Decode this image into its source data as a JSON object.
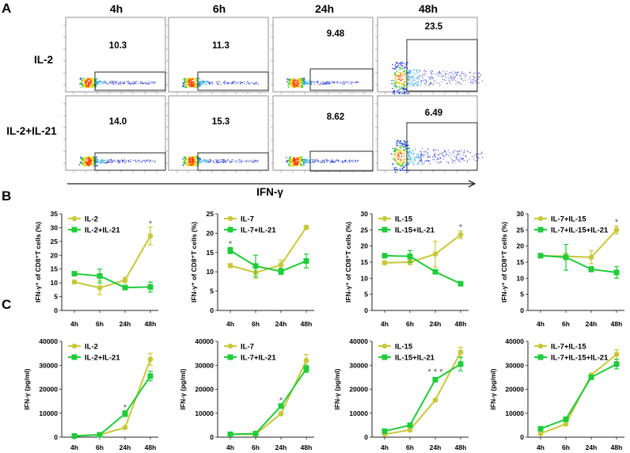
{
  "figure": {
    "panel_labels": [
      "A",
      "B",
      "C"
    ],
    "flow": {
      "time_headers": [
        "4h",
        "6h",
        "24h",
        "48h"
      ],
      "row_labels": [
        "IL-2",
        "IL-2+IL-21"
      ],
      "percentages": [
        [
          "10.3",
          "11.3",
          "9.48",
          "23.5"
        ],
        [
          "14.0",
          "15.3",
          "8.62",
          "6.49"
        ]
      ],
      "x_axis_label": "IFN-γ"
    }
  },
  "colors": {
    "yellow": "#c8c83a",
    "green": "#1fcc3a",
    "axis": "#222222"
  },
  "chart_data": [
    {
      "type": "line",
      "row": "B",
      "categories": [
        "4h",
        "6h",
        "24h",
        "48h"
      ],
      "ylabel": "IFN-γ⁺ of CD8⁺T cells (%)",
      "ylim": [
        0,
        35
      ],
      "yticks": [
        0,
        5,
        10,
        15,
        20,
        25,
        30,
        35
      ],
      "yticklabels": [
        "0",
        "5",
        "10",
        "15",
        "20",
        "25",
        "30",
        "35"
      ],
      "series": [
        {
          "name": "IL-2",
          "color": "yellow",
          "values": [
            10.3,
            8.2,
            11.0,
            27.0
          ],
          "err": [
            0.6,
            2.5,
            1.0,
            3.2
          ]
        },
        {
          "name": "IL-2+IL-21",
          "color": "green",
          "values": [
            13.3,
            12.5,
            8.3,
            8.5
          ],
          "err": [
            0.6,
            2.5,
            0.5,
            1.8
          ]
        }
      ],
      "annotations": [
        {
          "x": "48h",
          "y": 31.5,
          "text": "*"
        }
      ]
    },
    {
      "type": "line",
      "row": "B",
      "categories": [
        "4h",
        "6h",
        "24h",
        "48h"
      ],
      "ylabel": "IFN-γ⁺ of CD8⁺T cells (%)",
      "ylim": [
        0,
        25
      ],
      "yticks": [
        0,
        5,
        10,
        15,
        20,
        25
      ],
      "yticklabels": [
        "0",
        "5",
        "10",
        "15",
        "20",
        "25"
      ],
      "series": [
        {
          "name": "IL-7",
          "color": "yellow",
          "values": [
            11.6,
            9.8,
            11.8,
            21.5
          ],
          "err": [
            0.5,
            1.5,
            1.2,
            0.5
          ]
        },
        {
          "name": "IL-7+IL-21",
          "color": "green",
          "values": [
            15.5,
            11.5,
            10.1,
            12.8
          ],
          "err": [
            0.8,
            2.8,
            0.8,
            1.8
          ]
        }
      ],
      "annotations": [
        {
          "x": "4h",
          "y": 17.3,
          "text": "*"
        }
      ]
    },
    {
      "type": "line",
      "row": "B",
      "categories": [
        "4h",
        "6h",
        "24h",
        "48h"
      ],
      "ylabel": "IFN-γ⁺ of CD8⁺T cells (%)",
      "ylim": [
        0,
        30
      ],
      "yticks": [
        0,
        5,
        10,
        15,
        20,
        25,
        30
      ],
      "yticklabels": [
        "0",
        "5",
        "10",
        "15",
        "20",
        "25",
        "30"
      ],
      "series": [
        {
          "name": "IL-15",
          "color": "yellow",
          "values": [
            14.8,
            15.0,
            17.5,
            23.5
          ],
          "err": [
            0.5,
            0.8,
            4.0,
            1.2
          ]
        },
        {
          "name": "IL-15+IL-21",
          "color": "green",
          "values": [
            17.0,
            16.8,
            12.0,
            8.3
          ],
          "err": [
            0.5,
            1.8,
            0.5,
            0.6
          ]
        }
      ],
      "annotations": [
        {
          "x": "48h",
          "y": 26.0,
          "text": "*"
        }
      ]
    },
    {
      "type": "line",
      "row": "B",
      "categories": [
        "4h",
        "6h",
        "24h",
        "48h"
      ],
      "ylabel": "IFN-γ⁺ of CD8⁺T cells (%)",
      "ylim": [
        0,
        30
      ],
      "yticks": [
        0,
        5,
        10,
        15,
        20,
        25,
        30
      ],
      "yticklabels": [
        "0",
        "5",
        "10",
        "15",
        "20",
        "25",
        "30"
      ],
      "series": [
        {
          "name": "IL-7+IL-15",
          "color": "yellow",
          "values": [
            17.0,
            16.8,
            16.5,
            25.0
          ],
          "err": [
            0.5,
            1.0,
            2.0,
            1.2
          ]
        },
        {
          "name": "IL-7+IL-15+IL-21",
          "color": "green",
          "values": [
            17.0,
            16.5,
            12.8,
            11.8
          ],
          "err": [
            0.5,
            4.0,
            0.8,
            1.8
          ]
        }
      ],
      "annotations": [
        {
          "x": "48h",
          "y": 27.5,
          "text": "*"
        }
      ]
    },
    {
      "type": "line",
      "row": "C",
      "categories": [
        "4h",
        "6h",
        "24h",
        "48h"
      ],
      "ylabel": "IFN-γ (pg/ml)",
      "ylim": [
        0,
        40000
      ],
      "yticks": [
        0,
        10000,
        20000,
        30000,
        40000
      ],
      "yticklabels": [
        "0",
        "10000",
        "20000",
        "30000",
        "40000"
      ],
      "series": [
        {
          "name": "IL-2",
          "color": "yellow",
          "values": [
            500,
            1000,
            4000,
            32500
          ],
          "err": [
            0,
            0,
            0,
            2500
          ]
        },
        {
          "name": "IL-2+IL-21",
          "color": "green",
          "values": [
            500,
            1000,
            9800,
            25500
          ],
          "err": [
            0,
            0,
            1200,
            2000
          ]
        }
      ],
      "annotations": [
        {
          "x": "24h",
          "y": 12500,
          "text": "*"
        }
      ]
    },
    {
      "type": "line",
      "row": "C",
      "categories": [
        "4h",
        "6h",
        "24h",
        "48h"
      ],
      "ylabel": "IFN-γ (pg/ml)",
      "ylim": [
        0,
        40000
      ],
      "yticks": [
        0,
        10000,
        20000,
        30000,
        40000
      ],
      "yticklabels": [
        "0",
        "10000",
        "20000",
        "30000",
        "40000"
      ],
      "series": [
        {
          "name": "IL-7",
          "color": "yellow",
          "values": [
            1200,
            1200,
            9800,
            32000
          ],
          "err": [
            0,
            0,
            0,
            2500
          ]
        },
        {
          "name": "IL-7+IL-21",
          "color": "green",
          "values": [
            1200,
            1500,
            13000,
            28500
          ],
          "err": [
            0,
            0,
            900,
            1500
          ]
        }
      ],
      "annotations": [
        {
          "x": "24h",
          "y": 15500,
          "text": "*"
        }
      ]
    },
    {
      "type": "line",
      "row": "C",
      "categories": [
        "4h",
        "6h",
        "24h",
        "48h"
      ],
      "ylabel": "IFN-γ (pg/ml)",
      "ylim": [
        0,
        40000
      ],
      "yticks": [
        0,
        10000,
        20000,
        30000,
        40000
      ],
      "yticklabels": [
        "0",
        "10000",
        "20000",
        "30000",
        "40000"
      ],
      "series": [
        {
          "name": "IL-15",
          "color": "yellow",
          "values": [
            1200,
            3000,
            15500,
            35500
          ],
          "err": [
            0,
            0,
            0,
            2000
          ]
        },
        {
          "name": "IL-15+IL-21",
          "color": "green",
          "values": [
            2500,
            5000,
            24000,
            30500
          ],
          "err": [
            0,
            0,
            600,
            2800
          ]
        }
      ],
      "annotations": [
        {
          "x": "24h",
          "y": 27500,
          "text": "* * *"
        }
      ]
    },
    {
      "type": "line",
      "row": "C",
      "categories": [
        "4h",
        "6h",
        "24h",
        "48h"
      ],
      "ylabel": "IFN-γ (pg/ml)",
      "ylim": [
        0,
        40000
      ],
      "yticks": [
        0,
        10000,
        20000,
        30000,
        40000
      ],
      "yticklabels": [
        "0",
        "10000",
        "20000",
        "30000",
        "40000"
      ],
      "series": [
        {
          "name": "IL-7+IL-15",
          "color": "yellow",
          "values": [
            1500,
            5500,
            26000,
            34500
          ],
          "err": [
            0,
            0,
            0,
            2000
          ]
        },
        {
          "name": "IL-7+IL-15+IL-21",
          "color": "green",
          "values": [
            3500,
            7500,
            25000,
            30500
          ],
          "err": [
            0,
            0,
            500,
            2000
          ]
        }
      ],
      "annotations": []
    }
  ]
}
